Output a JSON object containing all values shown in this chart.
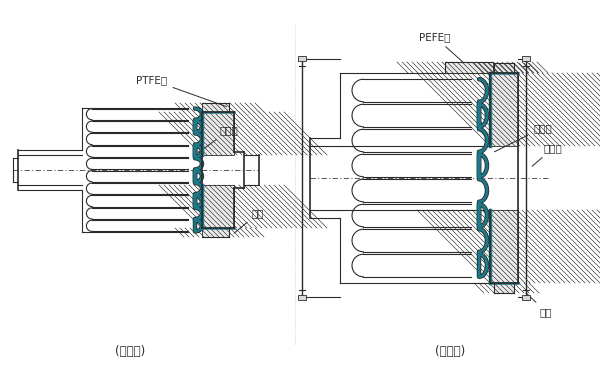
{
  "bg_color": "#ffffff",
  "line_color": "#2a2a2a",
  "teal_color": "#1a7a8a",
  "label_left_ptfe": "PTFE层",
  "label_left_metal": "金属层",
  "label_left_flange": "法屰",
  "label_left_type": "(低波型)",
  "label_right_ptfe": "PEFE层",
  "label_right_metal": "金属层",
  "label_right_rod": "调节杆",
  "label_right_flange": "法屰",
  "label_right_type": "(高波型)",
  "fig_width": 6.0,
  "fig_height": 3.71
}
